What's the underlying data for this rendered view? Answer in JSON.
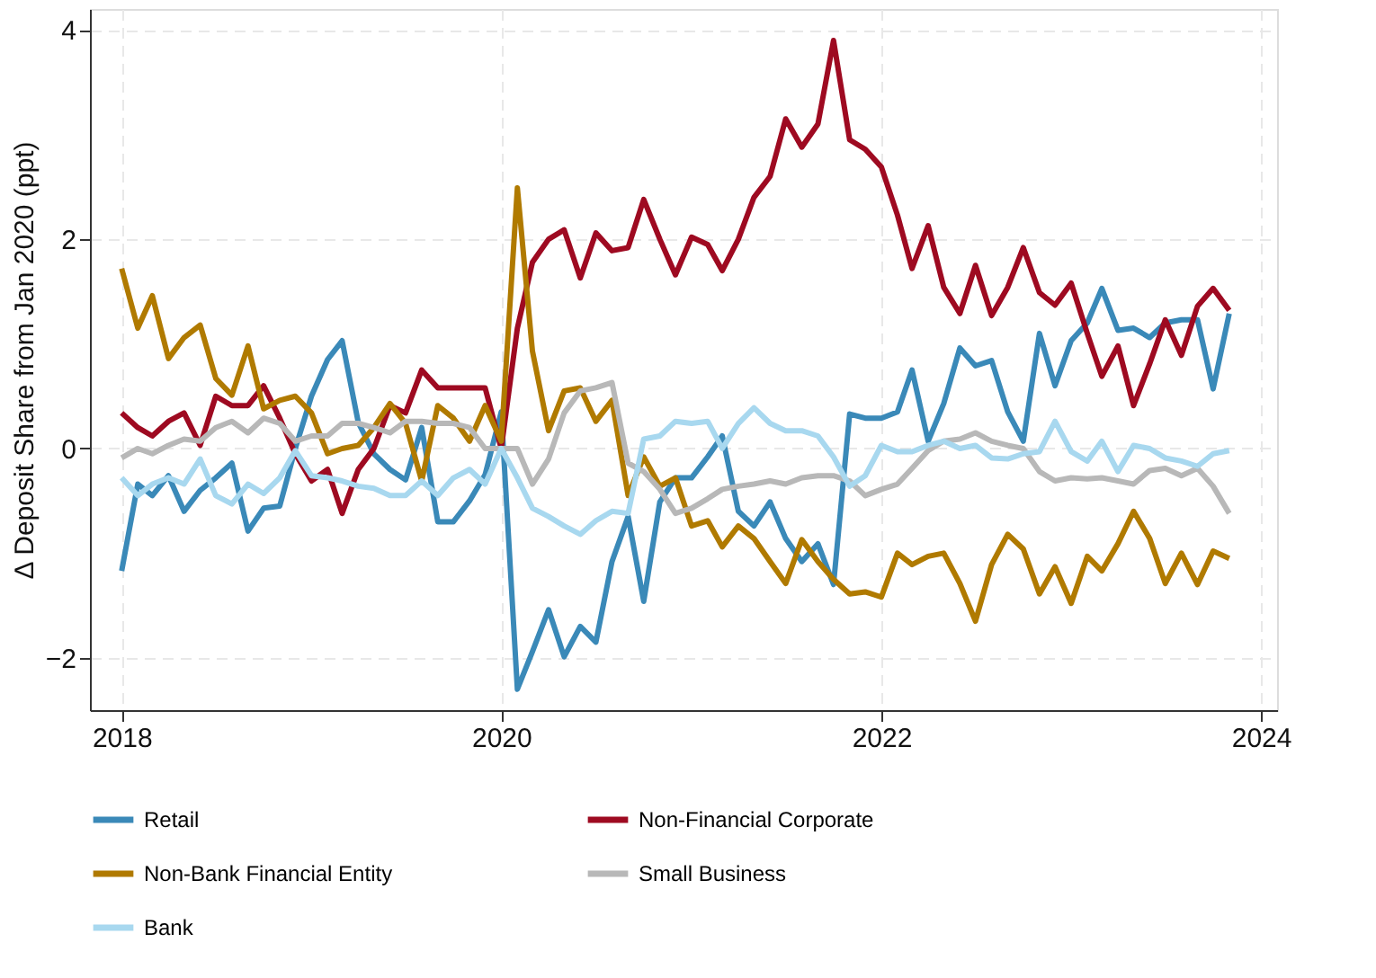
{
  "chart_data": {
    "type": "line",
    "ylabel": "Δ Deposit Share from Jan 2020 (ppt)",
    "x": [
      "2018-01",
      "2018-02",
      "2018-03",
      "2018-04",
      "2018-05",
      "2018-06",
      "2018-07",
      "2018-08",
      "2018-09",
      "2018-10",
      "2018-11",
      "2018-12",
      "2019-01",
      "2019-02",
      "2019-03",
      "2019-04",
      "2019-05",
      "2019-06",
      "2019-07",
      "2019-08",
      "2019-09",
      "2019-10",
      "2019-11",
      "2019-12",
      "2020-01",
      "2020-02",
      "2020-03",
      "2020-04",
      "2020-05",
      "2020-06",
      "2020-07",
      "2020-08",
      "2020-09",
      "2020-10",
      "2020-11",
      "2020-12",
      "2021-01",
      "2021-02",
      "2021-03",
      "2021-04",
      "2021-05",
      "2021-06",
      "2021-07",
      "2021-08",
      "2021-09",
      "2021-10",
      "2021-11",
      "2021-12",
      "2022-01",
      "2022-02",
      "2022-03",
      "2022-04",
      "2022-05",
      "2022-06",
      "2022-07",
      "2022-08",
      "2022-09",
      "2022-10",
      "2022-11",
      "2022-12",
      "2023-01",
      "2023-02",
      "2023-03",
      "2023-04",
      "2023-05",
      "2023-06",
      "2023-07",
      "2023-08",
      "2023-09",
      "2023-10",
      "2023-11"
    ],
    "series": [
      {
        "name": "Retail",
        "color": "#3a89b8",
        "values": [
          -1.17,
          -0.34,
          -0.45,
          -0.26,
          -0.6,
          -0.4,
          -0.28,
          -0.14,
          -0.79,
          -0.57,
          -0.55,
          0.0,
          0.5,
          0.85,
          1.03,
          0.25,
          -0.05,
          -0.2,
          -0.3,
          0.2,
          -0.7,
          -0.7,
          -0.5,
          -0.25,
          0.35,
          -2.3,
          -1.94,
          -1.54,
          -1.99,
          -1.7,
          -1.85,
          -1.08,
          -0.65,
          -1.46,
          -0.51,
          -0.28,
          -0.28,
          -0.08,
          0.12,
          -0.6,
          -0.74,
          -0.51,
          -0.86,
          -1.08,
          -0.91,
          -1.3,
          0.33,
          0.29,
          0.29,
          0.35,
          0.75,
          0.07,
          0.43,
          0.96,
          0.79,
          0.84,
          0.35,
          0.07,
          1.1,
          0.6,
          1.03,
          1.2,
          1.53,
          1.13,
          1.15,
          1.06,
          1.2,
          1.23,
          1.23,
          0.57,
          1.29
        ]
      },
      {
        "name": "Non-Financial Corporate",
        "color": "#9e0a21",
        "values": [
          0.34,
          0.2,
          0.12,
          0.26,
          0.34,
          0.03,
          0.5,
          0.41,
          0.41,
          0.6,
          0.29,
          -0.05,
          -0.31,
          -0.2,
          -0.62,
          -0.2,
          0.0,
          0.41,
          0.34,
          0.75,
          0.58,
          0.58,
          0.58,
          0.58,
          0.0,
          1.15,
          1.78,
          2.0,
          2.09,
          1.63,
          2.06,
          1.89,
          1.92,
          2.38,
          2.0,
          1.66,
          2.02,
          1.95,
          1.7,
          2.0,
          2.4,
          2.6,
          3.15,
          2.88,
          3.1,
          3.9,
          2.95,
          2.86,
          2.69,
          2.23,
          1.72,
          2.13,
          1.54,
          1.29,
          1.75,
          1.27,
          1.54,
          1.92,
          1.49,
          1.37,
          1.58,
          1.1,
          0.69,
          0.98,
          0.41,
          0.81,
          1.23,
          0.89,
          1.36,
          1.53,
          1.32
        ]
      },
      {
        "name": "Non-Bank Financial Entity",
        "color": "#b07a00",
        "values": [
          1.72,
          1.15,
          1.46,
          0.86,
          1.06,
          1.18,
          0.67,
          0.51,
          0.98,
          0.38,
          0.46,
          0.5,
          0.34,
          -0.05,
          0.0,
          0.03,
          0.2,
          0.43,
          0.24,
          -0.31,
          0.41,
          0.29,
          0.07,
          0.41,
          0.07,
          2.49,
          0.93,
          0.17,
          0.55,
          0.58,
          0.26,
          0.46,
          -0.45,
          -0.08,
          -0.36,
          -0.28,
          -0.74,
          -0.69,
          -0.94,
          -0.74,
          -0.86,
          -1.08,
          -1.29,
          -0.87,
          -1.08,
          -1.25,
          -1.39,
          -1.37,
          -1.42,
          -1.0,
          -1.11,
          -1.03,
          -1.0,
          -1.29,
          -1.65,
          -1.11,
          -0.82,
          -0.96,
          -1.39,
          -1.13,
          -1.48,
          -1.03,
          -1.17,
          -0.91,
          -0.6,
          -0.86,
          -1.29,
          -1.0,
          -1.3,
          -0.98,
          -1.05
        ]
      },
      {
        "name": "Small Business",
        "color": "#b8b8b8",
        "values": [
          -0.09,
          0.0,
          -0.05,
          0.03,
          0.09,
          0.07,
          0.2,
          0.26,
          0.15,
          0.29,
          0.24,
          0.07,
          0.12,
          0.12,
          0.24,
          0.24,
          0.2,
          0.15,
          0.26,
          0.26,
          0.24,
          0.24,
          0.2,
          0.0,
          0.0,
          0.0,
          -0.34,
          -0.1,
          0.34,
          0.55,
          0.58,
          0.63,
          -0.14,
          -0.22,
          -0.39,
          -0.62,
          -0.57,
          -0.48,
          -0.39,
          -0.36,
          -0.34,
          -0.31,
          -0.34,
          -0.28,
          -0.26,
          -0.26,
          -0.31,
          -0.45,
          -0.39,
          -0.34,
          -0.19,
          -0.02,
          0.07,
          0.09,
          0.15,
          0.07,
          0.03,
          0.0,
          -0.22,
          -0.31,
          -0.28,
          -0.29,
          -0.28,
          -0.31,
          -0.34,
          -0.21,
          -0.19,
          -0.26,
          -0.19,
          -0.36,
          -0.62
        ]
      },
      {
        "name": "Bank",
        "color": "#a8d8ef",
        "values": [
          -0.28,
          -0.45,
          -0.34,
          -0.28,
          -0.34,
          -0.1,
          -0.45,
          -0.53,
          -0.34,
          -0.43,
          -0.28,
          -0.02,
          -0.26,
          -0.28,
          -0.31,
          -0.36,
          -0.38,
          -0.45,
          -0.45,
          -0.31,
          -0.45,
          -0.28,
          -0.2,
          -0.34,
          0.0,
          -0.28,
          -0.57,
          -0.65,
          -0.74,
          -0.82,
          -0.69,
          -0.6,
          -0.62,
          0.09,
          0.12,
          0.26,
          0.24,
          0.26,
          0.0,
          0.24,
          0.39,
          0.24,
          0.17,
          0.17,
          0.12,
          -0.08,
          -0.36,
          -0.26,
          0.03,
          -0.03,
          -0.03,
          0.03,
          0.07,
          0.0,
          0.03,
          -0.09,
          -0.1,
          -0.05,
          -0.03,
          0.26,
          -0.03,
          -0.12,
          0.07,
          -0.22,
          0.03,
          0.0,
          -0.09,
          -0.12,
          -0.17,
          -0.05,
          -0.02
        ]
      }
    ],
    "xlim": [
      "2017-11",
      "2024-02"
    ],
    "xticks": [
      "2018",
      "2020",
      "2022",
      "2024"
    ],
    "ylim": [
      -2.5,
      4.2
    ],
    "yticks": [
      -2,
      0,
      2,
      4
    ],
    "grid": true,
    "legend": "bottom"
  }
}
